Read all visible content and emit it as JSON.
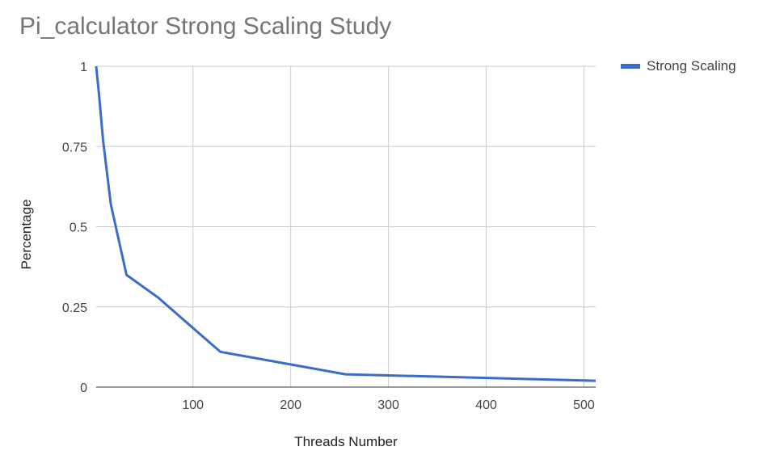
{
  "chart_data": {
    "type": "line",
    "title": "Pi_calculator Strong Scaling Study",
    "xlabel": "Threads Number",
    "ylabel": "Percentage",
    "xlim": [
      1,
      512
    ],
    "ylim": [
      0,
      1
    ],
    "xticks": [
      100,
      200,
      300,
      400,
      500
    ],
    "xtick_labels": [
      "100",
      "200",
      "300",
      "400",
      "500"
    ],
    "yticks": [
      0,
      0.25,
      0.5,
      0.75,
      1
    ],
    "ytick_labels": [
      "0",
      "0.25",
      "0.5",
      "0.75",
      "1"
    ],
    "grid": true,
    "legend_position": "top-right",
    "series": [
      {
        "name": "Strong Scaling",
        "color": "#3b6cca",
        "x": [
          1,
          2,
          4,
          8,
          16,
          32,
          64,
          128,
          256,
          512
        ],
        "y": [
          1.0,
          0.97,
          0.91,
          0.77,
          0.57,
          0.35,
          0.28,
          0.11,
          0.04,
          0.02
        ]
      }
    ]
  }
}
